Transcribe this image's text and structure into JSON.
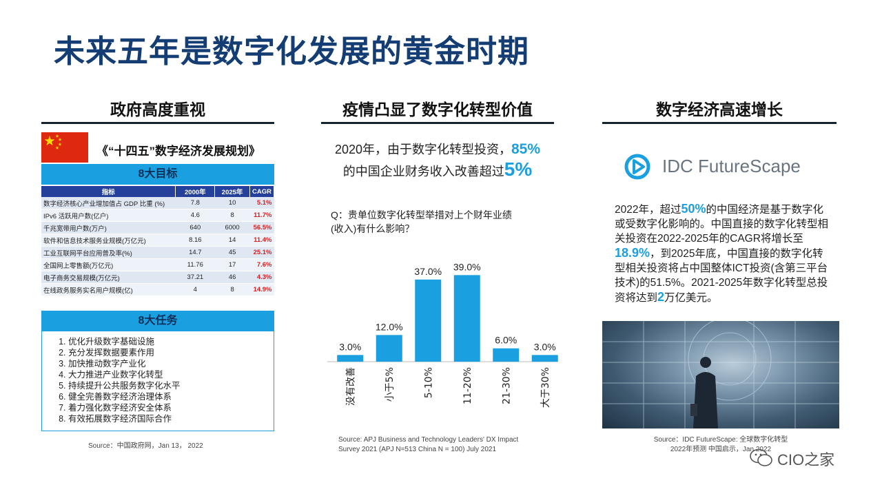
{
  "title": "未来五年是数字化发展的黄金时期",
  "left": {
    "heading": "政府高度重视",
    "plan_title": "《“十四五”数字经济发展规划》",
    "goals_header": "8大目标",
    "table_headers": [
      "指标",
      "2000年",
      "2025年",
      "CAGR"
    ],
    "rows": [
      [
        "数字经济核心产业增加值占 GDP 比重 (%)",
        "7.8",
        "10",
        "5.1%"
      ],
      [
        "IPv6 活跃用户数(亿户)",
        "4.6",
        "8",
        "11.7%"
      ],
      [
        "千兆宽带用户数(万户)",
        "640",
        "6000",
        "56.5%"
      ],
      [
        "软件和信息技术服务业规模(万亿元)",
        "8.16",
        "14",
        "11.4%"
      ],
      [
        "工业互联网平台应用普及率(%)",
        "14.7",
        "45",
        "25.1%"
      ],
      [
        "全国网上零售额(万亿元)",
        "11.76",
        "17",
        "7.6%"
      ],
      [
        "电子商务交易规模(万亿元)",
        "37.21",
        "46",
        "4.3%"
      ],
      [
        "在线政务服务实名用户规模(亿)",
        "4",
        "8",
        "14.9%"
      ]
    ],
    "tasks_header": "8大任务",
    "tasks": [
      "优化升级数字基础设施",
      "充分发挥数据要素作用",
      "加快推动数字产业化",
      "大力推进产业数字化转型",
      "持续提升公共服务数字化水平",
      "健全完善数字经济治理体系",
      "着力强化数字经济安全体系",
      "有效拓展数字经济国际合作"
    ],
    "source": "Source：中国政府网，Jan 13， 2022"
  },
  "middle": {
    "heading": "疫情凸显了数字化转型价值",
    "stat_line1_prefix": "2020年，由于数字化转型投资，",
    "stat_line1_value": "85%",
    "stat_line2_prefix": "的中国企业财务收入改善超过",
    "stat_line2_value": "5%",
    "question_line1": "Q：贵单位数字化转型举措对上个财年业绩",
    "question_line2": "(收入)有什么影响？",
    "source_line1": "Source: APJ Business and Technology Leaders' DX Impact",
    "source_line2": "Survey 2021 (APJ N=513    China N = 100)   July 2021"
  },
  "chart_data": {
    "type": "bar",
    "categories": [
      "没有改善",
      "小于5%",
      "5-10%",
      "11-20%",
      "21-30%",
      "大于30%"
    ],
    "values": [
      3.0,
      12.0,
      37.0,
      39.0,
      6.0,
      3.0
    ],
    "data_labels": [
      "3.0%",
      "12.0%",
      "37.0%",
      "39.0%",
      "6.0%",
      "3.0%"
    ],
    "ylim": [
      0,
      45
    ],
    "grid": false,
    "bar_color": "#1aa0e0"
  },
  "right": {
    "heading": "数字经济高速增长",
    "logo_text": "IDC FutureScape",
    "p_a": "2022年，超过",
    "p_b": "50%",
    "p_c": "的中国经济是基于数字化或受数字化影响的。中国直接的数字化转型相关投资在2022-2025年的CAGR将增长至",
    "p_d": "18.9%",
    "p_e": "，到2025年底，中国直接的数字化转型相关投资将占中国整体ICT投资(含第三平台技术)的51.5%。2021-2025年数字化转型总投资将达到",
    "p_f": "2",
    "p_g": "万亿美元。",
    "source_line1": "Source：IDC FutureScape: 全球数字化转型",
    "source_line2": "2022年预测    中国启示，Jan 2022"
  },
  "watermark": "CIO之家",
  "colors": {
    "title": "#143d73",
    "accent": "#1aa0e0",
    "header_blue": "#24409a",
    "cagr_red": "#e01b1b"
  }
}
